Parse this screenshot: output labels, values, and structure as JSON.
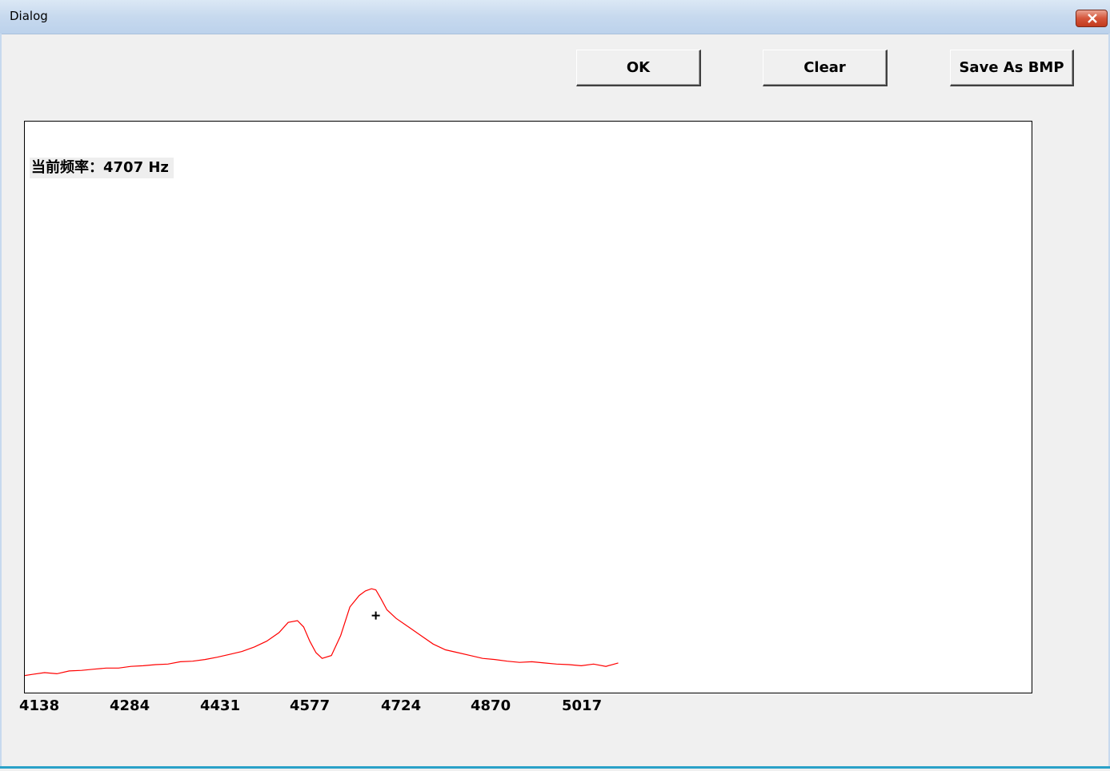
{
  "window": {
    "title": "Dialog"
  },
  "buttons": {
    "ok_label": "OK",
    "clear_label": "Clear",
    "save_label": "Save As BMP"
  },
  "readout": {
    "label": "当前频率：",
    "value": "4707 Hz"
  },
  "colors": {
    "trace": "#ff0000",
    "marker": "#000000",
    "plot_bg": "#ffffff"
  },
  "chart_data": {
    "type": "line",
    "x_ticks": [
      "4138",
      "4284",
      "4431",
      "4577",
      "4724",
      "4870",
      "5017"
    ],
    "xlim": [
      4138,
      5770
    ],
    "ylim": [
      0,
      100
    ],
    "grid": false,
    "marker": {
      "x": 4707,
      "y": 13.5
    },
    "series": [
      {
        "x": [
          4138,
          4150,
          4170,
          4190,
          4210,
          4230,
          4250,
          4270,
          4290,
          4310,
          4330,
          4350,
          4370,
          4390,
          4410,
          4430,
          4450,
          4470,
          4490,
          4510,
          4530,
          4550,
          4565,
          4580,
          4590,
          4600,
          4610,
          4620,
          4635,
          4650,
          4665,
          4680,
          4690,
          4700,
          4707,
          4715,
          4725,
          4740,
          4760,
          4780,
          4800,
          4820,
          4840,
          4860,
          4880,
          4900,
          4920,
          4940,
          4960,
          4980,
          5000,
          5020,
          5040,
          5060,
          5080,
          5100
        ],
        "y": [
          3.0,
          3.2,
          3.5,
          3.3,
          3.8,
          3.9,
          4.1,
          4.3,
          4.3,
          4.6,
          4.7,
          4.9,
          5.0,
          5.4,
          5.5,
          5.8,
          6.2,
          6.7,
          7.2,
          8.0,
          9.0,
          10.5,
          12.3,
          12.6,
          11.5,
          9.0,
          7.0,
          6.0,
          6.5,
          10.0,
          15.0,
          17.0,
          17.8,
          18.2,
          18.0,
          16.5,
          14.5,
          13.0,
          11.5,
          10.0,
          8.5,
          7.5,
          7.0,
          6.5,
          6.0,
          5.8,
          5.5,
          5.3,
          5.4,
          5.2,
          5.0,
          4.9,
          4.7,
          5.0,
          4.6,
          5.2
        ]
      }
    ]
  }
}
